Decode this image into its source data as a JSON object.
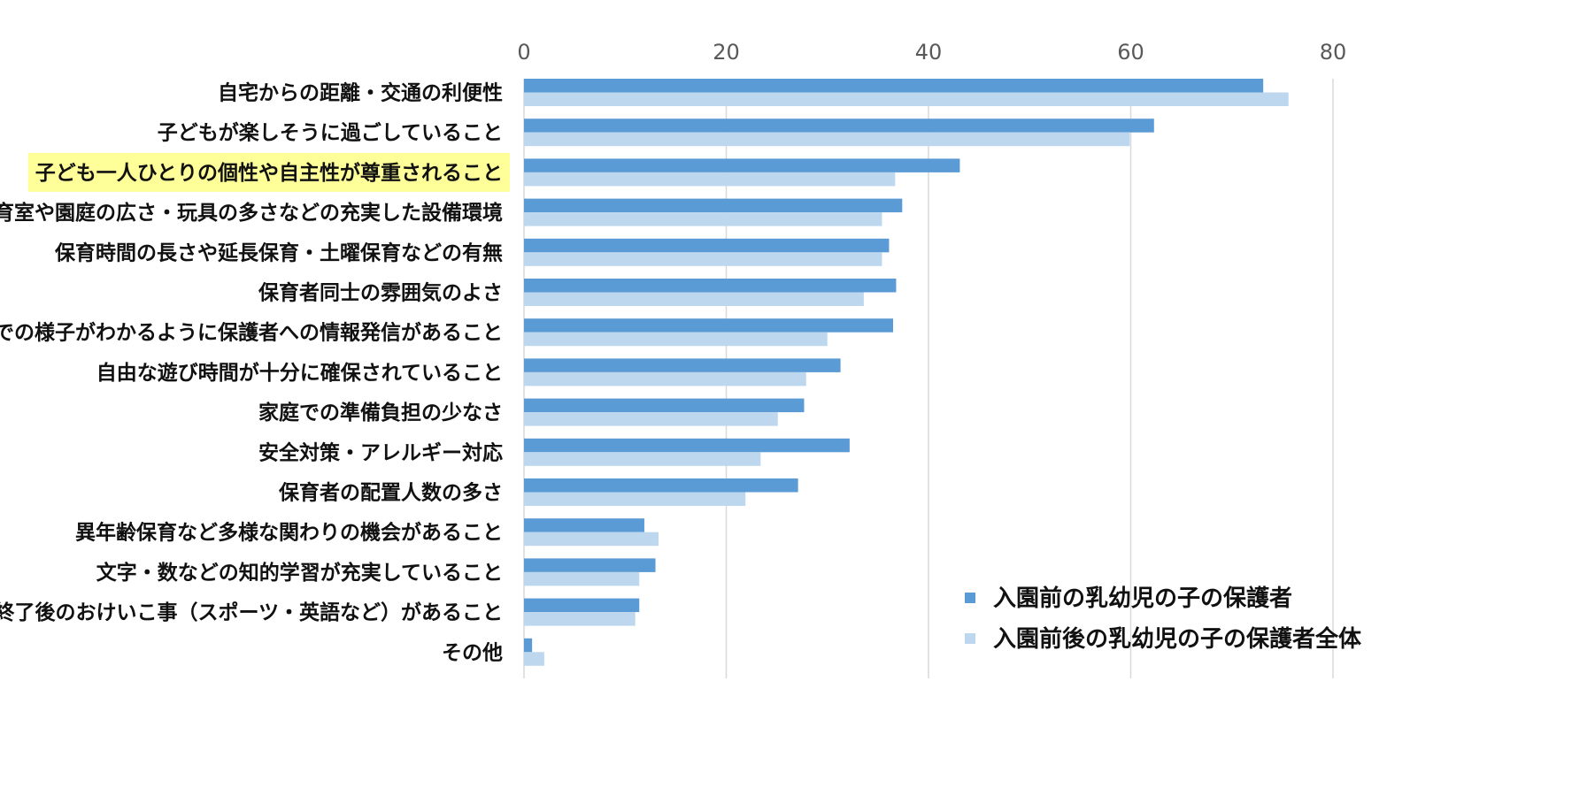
{
  "colors": {
    "series1": "#5b9bd5",
    "series2": "#bdd7ee",
    "highlight": "#ffff99",
    "grid": "#d9d9d9"
  },
  "chart_data": {
    "type": "bar",
    "orientation": "horizontal",
    "title": "",
    "xlabel": "",
    "ylabel": "",
    "xlim": [
      0,
      80
    ],
    "ticks": [
      0,
      20,
      40,
      60,
      80
    ],
    "tick_labels": [
      "0",
      "20",
      "40",
      "60",
      "80"
    ],
    "axis_position": "top",
    "grid": true,
    "legend_position": "bottom-right",
    "highlighted_category": "子ども一人ひとりの個性や自主性が尊重されること",
    "categories": [
      "自宅からの距離・交通の利便性",
      "子どもが楽しそうに過ごしていること",
      "子ども一人ひとりの個性や自主性が尊重されること",
      "保育室や園庭の広さ・玩具の多さなどの充実した設備環境",
      "保育時間の長さや延長保育・土曜保育などの有無",
      "保育者同士の雰囲気のよさ",
      "園での様子がわかるように保護者への情報発信があること",
      "自由な遊び時間が十分に確保されていること",
      "家庭での準備負担の少なさ",
      "安全対策・アレルギー対応",
      "保育者の配置人数の多さ",
      "異年齢保育など多様な関わりの機会があること",
      "文字・数などの知的学習が充実していること",
      "保育終了後のおけいこ事（スポーツ・英語など）があること",
      "その他"
    ],
    "series": [
      {
        "name": "入園前の乳幼児の子の保護者",
        "values": [
          73.1,
          62.3,
          43.1,
          37.4,
          36.1,
          36.8,
          36.5,
          31.3,
          27.7,
          32.2,
          27.1,
          11.9,
          13.0,
          11.4,
          0.8
        ]
      },
      {
        "name": "入園前後の乳幼児の子の保護者全体",
        "values": [
          75.6,
          59.9,
          36.7,
          35.4,
          35.4,
          33.6,
          30.0,
          27.9,
          25.1,
          23.4,
          21.9,
          13.3,
          11.4,
          11.0,
          2.0
        ]
      }
    ]
  }
}
